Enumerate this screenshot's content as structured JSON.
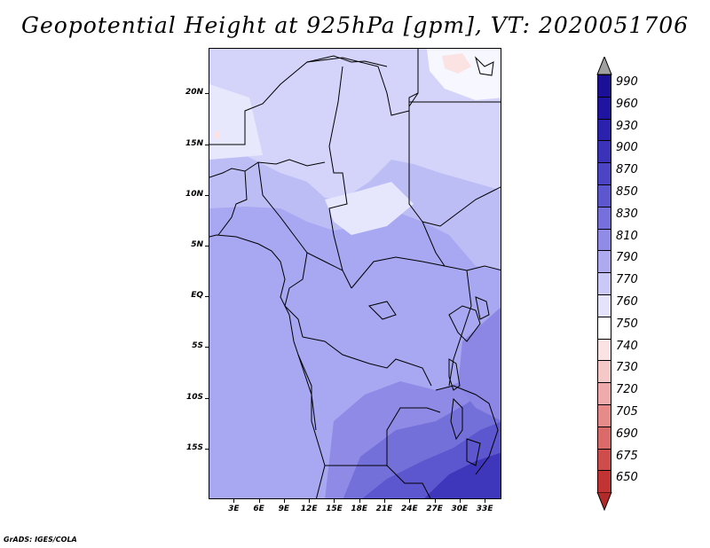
{
  "title": "Geopotential Height at 925hPa [gpm], VT: 2020051706",
  "footer": "GrADS: IGES/COLA",
  "map": {
    "projection": "latlon",
    "lat_range": [
      -20,
      24.5
    ],
    "lon_range": [
      0,
      35
    ],
    "y_ticks": [
      {
        "lat": 20,
        "label": "20N"
      },
      {
        "lat": 15,
        "label": "15N"
      },
      {
        "lat": 10,
        "label": "10N"
      },
      {
        "lat": 5,
        "label": "5N"
      },
      {
        "lat": 0,
        "label": "EQ"
      },
      {
        "lat": -5,
        "label": "5S"
      },
      {
        "lat": -10,
        "label": "10S"
      },
      {
        "lat": -15,
        "label": "15S"
      }
    ],
    "x_ticks": [
      {
        "lon": 3,
        "label": "3E"
      },
      {
        "lon": 6,
        "label": "6E"
      },
      {
        "lon": 9,
        "label": "9E"
      },
      {
        "lon": 12,
        "label": "12E"
      },
      {
        "lon": 15,
        "label": "15E"
      },
      {
        "lon": 18,
        "label": "18E"
      },
      {
        "lon": 21,
        "label": "21E"
      },
      {
        "lon": 24,
        "label": "24E"
      },
      {
        "lon": 27,
        "label": "27E"
      },
      {
        "lon": 30,
        "label": "30E"
      },
      {
        "lon": 33,
        "label": "33E"
      }
    ]
  },
  "colorbar": {
    "levels": [
      {
        "label": "990",
        "color": "#1a0f96"
      },
      {
        "label": "960",
        "color": "#1e14a0"
      },
      {
        "label": "930",
        "color": "#2a22ac"
      },
      {
        "label": "900",
        "color": "#3a32b8"
      },
      {
        "label": "870",
        "color": "#4b44c4"
      },
      {
        "label": "850",
        "color": "#5c56cf"
      },
      {
        "label": "830",
        "color": "#7670dc"
      },
      {
        "label": "810",
        "color": "#908be6"
      },
      {
        "label": "790",
        "color": "#aeaaf0"
      },
      {
        "label": "770",
        "color": "#cac8f7"
      },
      {
        "label": "760",
        "color": "#e4e3fb"
      },
      {
        "label": "750",
        "color": "#ffffff"
      },
      {
        "label": "740",
        "color": "#fbe3e3"
      },
      {
        "label": "730",
        "color": "#f6c9c9"
      },
      {
        "label": "720",
        "color": "#efabab"
      },
      {
        "label": "705",
        "color": "#e68a8a"
      },
      {
        "label": "690",
        "color": "#db6a6a"
      },
      {
        "label": "675",
        "color": "#cf4c4c"
      },
      {
        "label": "650",
        "color": "#c23434"
      }
    ],
    "top_arrow_color": "#a0a0a0",
    "bottom_arrow_color": "#b22a2a"
  }
}
